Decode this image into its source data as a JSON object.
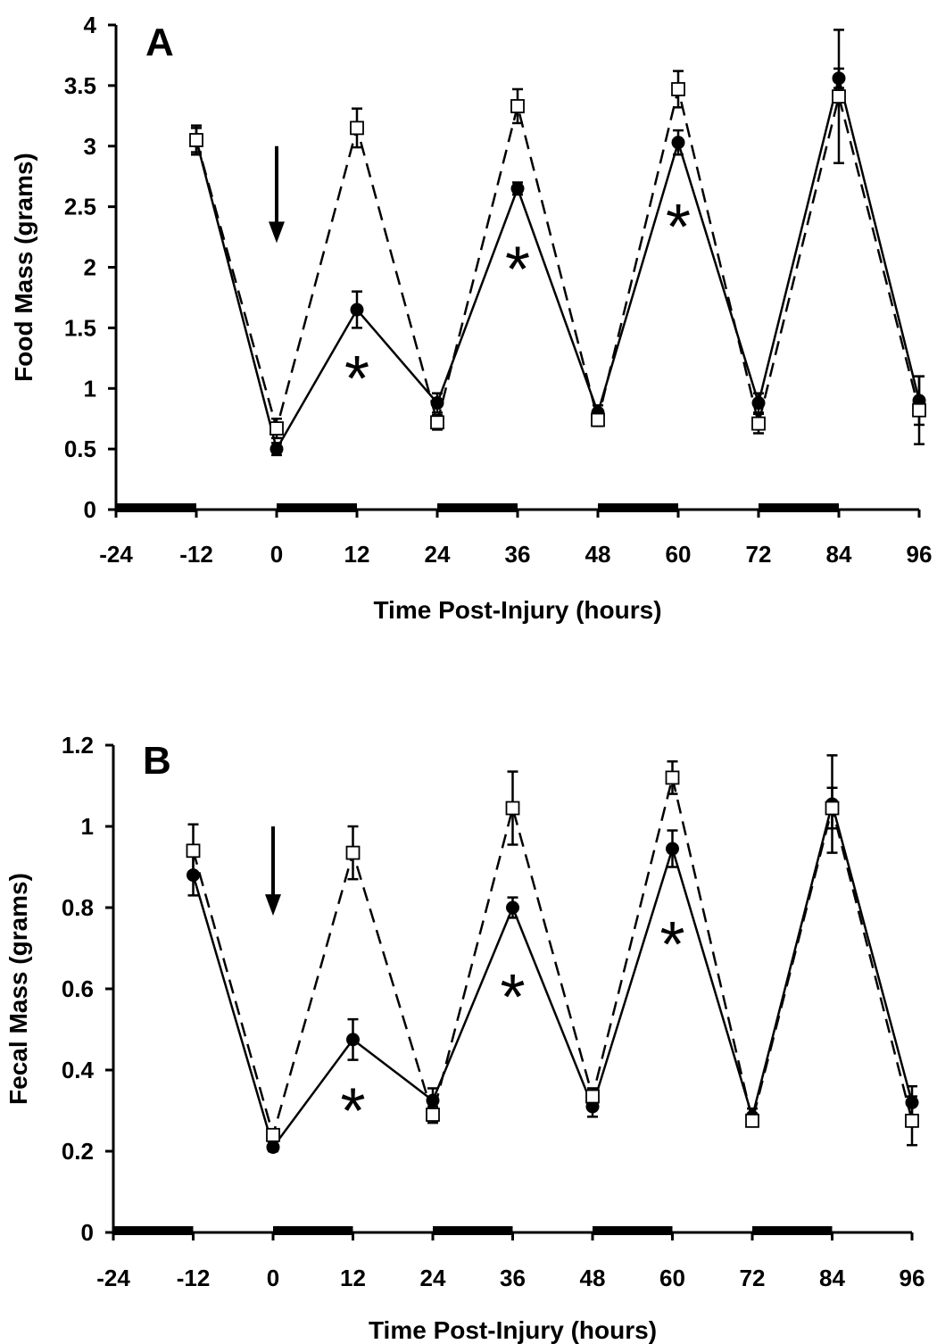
{
  "chart_data": [
    {
      "type": "line",
      "panel_label": "A",
      "xlabel": "Time Post-Injury (hours)",
      "ylabel": "Food Mass (grams)",
      "xlim": [
        -24,
        96
      ],
      "ylim": [
        0,
        4
      ],
      "x_ticks": [
        "-24",
        "-12",
        "0",
        "12",
        "24",
        "36",
        "48",
        "60",
        "72",
        "84",
        "96"
      ],
      "y_ticks": [
        "0",
        "0.5",
        "1",
        "1.5",
        "2",
        "2.5",
        "3",
        "3.5",
        "4"
      ],
      "x": [
        -12,
        0,
        12,
        24,
        36,
        48,
        60,
        72,
        84,
        96
      ],
      "series": [
        {
          "style": "solid",
          "marker": "filled-circle",
          "values": [
            3.05,
            0.5,
            1.65,
            0.88,
            2.65,
            0.8,
            3.03,
            0.88,
            3.56,
            0.9
          ],
          "errors": [
            0.12,
            0.05,
            0.15,
            0.08,
            0.05,
            0.06,
            0.1,
            0.08,
            0.08,
            0.2
          ]
        },
        {
          "style": "dashed",
          "marker": "open-square",
          "values": [
            3.05,
            0.67,
            3.15,
            0.72,
            3.33,
            0.74,
            3.47,
            0.71,
            3.41,
            0.82
          ],
          "errors": [
            0.1,
            0.08,
            0.16,
            0.06,
            0.14,
            0.05,
            0.15,
            0.08,
            0.55,
            0.28
          ]
        }
      ],
      "dark_periods": [
        [
          -24,
          -12
        ],
        [
          0,
          12
        ],
        [
          24,
          36
        ],
        [
          48,
          60
        ],
        [
          72,
          84
        ]
      ],
      "arrow": {
        "x": 0,
        "y_from": 3.0,
        "y_to": 2.2
      },
      "significance": [
        {
          "label": "*",
          "x": 12,
          "y": 1.15
        },
        {
          "label": "*",
          "x": 36,
          "y": 2.05
        },
        {
          "label": "*",
          "x": 60,
          "y": 2.4
        }
      ]
    },
    {
      "type": "line",
      "panel_label": "B",
      "xlabel": "Time Post-Injury (hours)",
      "ylabel": "Fecal Mass (grams)",
      "xlim": [
        -24,
        96
      ],
      "ylim": [
        0,
        1.2
      ],
      "x_ticks": [
        "-24",
        "-12",
        "0",
        "12",
        "24",
        "36",
        "48",
        "60",
        "72",
        "84",
        "96"
      ],
      "y_ticks": [
        "0",
        "0.2",
        "0.4",
        "0.6",
        "0.8",
        "1",
        "1.2"
      ],
      "x": [
        -12,
        0,
        12,
        24,
        36,
        48,
        60,
        72,
        84,
        96
      ],
      "series": [
        {
          "style": "solid",
          "marker": "filled-circle",
          "values": [
            0.88,
            0.21,
            0.475,
            0.325,
            0.8,
            0.31,
            0.945,
            0.285,
            1.055,
            0.32
          ],
          "errors": [
            0.05,
            0.01,
            0.05,
            0.03,
            0.025,
            0.025,
            0.045,
            0.02,
            0.12,
            0.04
          ]
        },
        {
          "style": "dashed",
          "marker": "open-square",
          "values": [
            0.94,
            0.24,
            0.935,
            0.29,
            1.045,
            0.335,
            1.12,
            0.275,
            1.045,
            0.275
          ],
          "errors": [
            0.065,
            0.01,
            0.065,
            0.02,
            0.09,
            0.02,
            0.04,
            0.01,
            0.05,
            0.06
          ]
        }
      ],
      "dark_periods": [
        [
          -24,
          -12
        ],
        [
          0,
          12
        ],
        [
          24,
          36
        ],
        [
          48,
          60
        ],
        [
          72,
          84
        ]
      ],
      "arrow": {
        "x": 0,
        "y_from": 1.0,
        "y_to": 0.78
      },
      "significance": [
        {
          "label": "*",
          "x": 12,
          "y": 0.32
        },
        {
          "label": "*",
          "x": 36,
          "y": 0.6
        },
        {
          "label": "*",
          "x": 60,
          "y": 0.73
        }
      ]
    }
  ]
}
